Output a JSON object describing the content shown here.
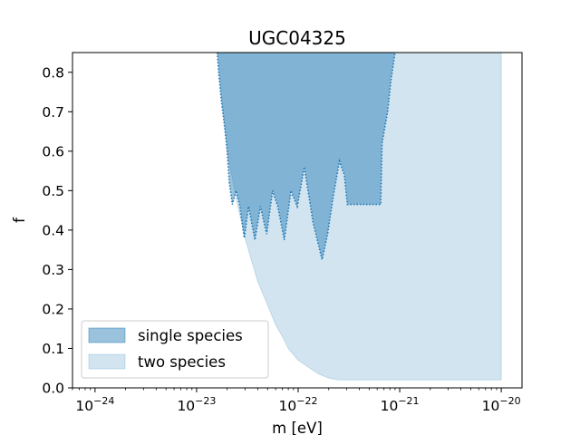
{
  "chart_data": {
    "type": "area",
    "title": "UGC04325",
    "xlabel": "m [eV]",
    "ylabel": "f",
    "xscale": "log",
    "xlim": [
      6e-25,
      1.6e-20
    ],
    "ylim": [
      0.0,
      0.85
    ],
    "grid": false,
    "legend_position": "lower-left",
    "x_ticks": [
      {
        "value": 1e-24,
        "base": "10",
        "exp": "−24"
      },
      {
        "value": 1e-23,
        "base": "10",
        "exp": "−23"
      },
      {
        "value": 1e-22,
        "base": "10",
        "exp": "−22"
      },
      {
        "value": 1e-21,
        "base": "10",
        "exp": "−21"
      },
      {
        "value": 1e-20,
        "base": "10",
        "exp": "−20"
      }
    ],
    "y_ticks": [
      {
        "value": 0.0,
        "label": "0.0"
      },
      {
        "value": 0.1,
        "label": "0.1"
      },
      {
        "value": 0.2,
        "label": "0.2"
      },
      {
        "value": 0.3,
        "label": "0.3"
      },
      {
        "value": 0.4,
        "label": "0.4"
      },
      {
        "value": 0.5,
        "label": "0.5"
      },
      {
        "value": 0.6,
        "label": "0.6"
      },
      {
        "value": 0.7,
        "label": "0.7"
      },
      {
        "value": 0.8,
        "label": "0.8"
      }
    ],
    "series": [
      {
        "name": "two species",
        "color": "#1f77b4",
        "opacity": 0.2,
        "lower_boundary": [
          [
            1.6e-23,
            0.85
          ],
          [
            2e-23,
            0.6
          ],
          [
            2.5e-23,
            0.47
          ],
          [
            3e-23,
            0.38
          ],
          [
            3.5e-23,
            0.32
          ],
          [
            4e-23,
            0.27
          ],
          [
            5e-23,
            0.21
          ],
          [
            6e-23,
            0.16
          ],
          [
            7e-23,
            0.13
          ],
          [
            8e-23,
            0.1
          ],
          [
            1e-22,
            0.07
          ],
          [
            1.3e-22,
            0.05
          ],
          [
            1.6e-22,
            0.035
          ],
          [
            2e-22,
            0.025
          ],
          [
            2.5e-22,
            0.02
          ],
          [
            1e-20,
            0.02
          ]
        ],
        "right_edge": 1e-20
      },
      {
        "name": "single species",
        "color": "#1f77b4",
        "opacity": 0.45,
        "boundary": [
          [
            1.6e-23,
            0.85
          ],
          [
            1.65e-23,
            0.8
          ],
          [
            1.75e-23,
            0.73
          ],
          [
            1.85e-23,
            0.68
          ],
          [
            1.95e-23,
            0.63
          ],
          [
            2e-23,
            0.6
          ],
          [
            2.1e-23,
            0.52
          ],
          [
            2.25e-23,
            0.465
          ],
          [
            2.45e-23,
            0.5
          ],
          [
            2.65e-23,
            0.465
          ],
          [
            2.95e-23,
            0.38
          ],
          [
            3.25e-23,
            0.46
          ],
          [
            3.75e-23,
            0.375
          ],
          [
            4.25e-23,
            0.46
          ],
          [
            4.9e-23,
            0.39
          ],
          [
            5.6e-23,
            0.5
          ],
          [
            6.3e-23,
            0.46
          ],
          [
            7.3e-23,
            0.375
          ],
          [
            8.5e-23,
            0.5
          ],
          [
            9.8e-23,
            0.46
          ],
          [
            1.15e-22,
            0.56
          ],
          [
            1.4e-22,
            0.42
          ],
          [
            1.72e-22,
            0.325
          ],
          [
            1.95e-22,
            0.39
          ],
          [
            2.2e-22,
            0.48
          ],
          [
            2.55e-22,
            0.575
          ],
          [
            2.85e-22,
            0.54
          ],
          [
            3.05e-22,
            0.465
          ],
          [
            6.5e-22,
            0.465
          ],
          [
            6.7e-22,
            0.62
          ],
          [
            7.6e-22,
            0.7
          ],
          [
            8.2e-22,
            0.78
          ],
          [
            9e-22,
            0.85
          ]
        ]
      }
    ]
  },
  "legend": [
    {
      "label": "single species",
      "color": "#1f77b4",
      "opacity": 0.45
    },
    {
      "label": "two species",
      "color": "#1f77b4",
      "opacity": 0.2
    }
  ]
}
